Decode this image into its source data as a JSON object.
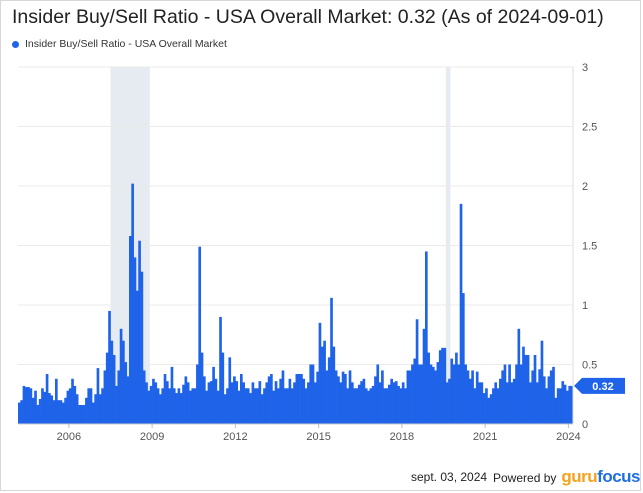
{
  "title": "Insider Buy/Sell Ratio - USA Overall Market: 0.32 (As of 2024-09-01)",
  "legend_label": "Insider Buy/Sell Ratio - USA Overall Market",
  "last_value_label": "0.32",
  "footer": {
    "date": "sept. 03, 2024",
    "powered_by": "Powered by",
    "brand_guru": "guru",
    "brand_focus": "focus"
  },
  "colors": {
    "series": "#1f63e9",
    "recession": "#e6ebf1",
    "grid": "#ebebeb",
    "axis_text": "#555555"
  },
  "chart_data": {
    "type": "bar",
    "title": "Insider Buy/Sell Ratio - USA Overall Market: 0.32 (As of 2024-09-01)",
    "xlabel": "",
    "ylabel": "",
    "ylim": [
      0,
      3
    ],
    "y_ticks": [
      "0",
      "0.5",
      "1",
      "1.5",
      "2",
      "2.5",
      "3"
    ],
    "x_ticks": [
      "2006",
      "2009",
      "2012",
      "2015",
      "2018",
      "2021",
      "2024"
    ],
    "x_range": [
      "2004-09",
      "2024-09"
    ],
    "grid": true,
    "legend_position": "top-left",
    "shaded_periods": [
      {
        "start": "2008-01",
        "end": "2009-06"
      },
      {
        "start": "2020-02",
        "end": "2020-04"
      }
    ],
    "series": [
      {
        "name": "Insider Buy/Sell Ratio - USA Overall Market",
        "start": "2004-09",
        "frequency": "monthly",
        "values": [
          0.18,
          0.2,
          0.32,
          0.31,
          0.31,
          0.3,
          0.22,
          0.28,
          0.16,
          0.21,
          0.3,
          0.27,
          0.42,
          0.26,
          0.24,
          0.2,
          0.38,
          0.2,
          0.2,
          0.18,
          0.22,
          0.28,
          0.3,
          0.38,
          0.32,
          0.25,
          0.16,
          0.16,
          0.16,
          0.22,
          0.3,
          0.3,
          0.18,
          0.25,
          0.47,
          0.25,
          0.3,
          0.45,
          0.6,
          0.95,
          0.7,
          0.58,
          0.32,
          0.45,
          0.8,
          0.7,
          0.52,
          0.4,
          1.58,
          2.02,
          1.4,
          1.12,
          1.54,
          1.28,
          0.45,
          0.35,
          0.28,
          0.32,
          0.38,
          0.35,
          0.3,
          0.25,
          0.3,
          0.42,
          0.36,
          0.3,
          0.48,
          0.3,
          0.26,
          0.3,
          0.26,
          0.33,
          0.4,
          0.35,
          0.28,
          0.3,
          0.3,
          0.5,
          1.49,
          0.6,
          0.4,
          0.28,
          0.35,
          0.36,
          0.48,
          0.38,
          0.28,
          0.9,
          0.6,
          0.25,
          0.3,
          0.56,
          0.35,
          0.4,
          0.36,
          0.28,
          0.42,
          0.35,
          0.3,
          0.3,
          0.26,
          0.35,
          0.3,
          0.3,
          0.36,
          0.25,
          0.3,
          0.35,
          0.4,
          0.42,
          0.28,
          0.36,
          0.3,
          0.38,
          0.45,
          0.3,
          0.3,
          0.38,
          0.3,
          0.35,
          0.42,
          0.42,
          0.42,
          0.38,
          0.3,
          0.35,
          0.5,
          0.5,
          0.35,
          0.44,
          0.85,
          0.65,
          0.7,
          0.45,
          0.56,
          1.06,
          0.65,
          0.45,
          0.4,
          0.35,
          0.44,
          0.42,
          0.3,
          0.45,
          0.35,
          0.3,
          0.3,
          0.33,
          0.36,
          0.38,
          0.3,
          0.28,
          0.3,
          0.32,
          0.4,
          0.5,
          0.35,
          0.45,
          0.3,
          0.3,
          0.33,
          0.38,
          0.35,
          0.36,
          0.32,
          0.3,
          0.35,
          0.3,
          0.45,
          0.45,
          0.5,
          0.55,
          0.88,
          0.5,
          0.5,
          0.8,
          1.45,
          0.6,
          0.5,
          0.48,
          0.45,
          0.52,
          0.62,
          0.64,
          0.64,
          0.35,
          0.38,
          0.55,
          0.5,
          0.6,
          0.5,
          1.85,
          1.1,
          0.5,
          0.45,
          0.38,
          0.45,
          0.3,
          0.44,
          0.35,
          0.35,
          0.26,
          0.3,
          0.22,
          0.25,
          0.3,
          0.35,
          0.3,
          0.38,
          0.45,
          0.5,
          0.35,
          0.5,
          0.35,
          0.38,
          0.5,
          0.8,
          0.5,
          0.65,
          0.58,
          0.58,
          0.35,
          0.45,
          0.58,
          0.35,
          0.46,
          0.7,
          0.4,
          0.3,
          0.4,
          0.45,
          0.48,
          0.22,
          0.3,
          0.3,
          0.36,
          0.33,
          0.28,
          0.32,
          0.32
        ]
      }
    ]
  }
}
